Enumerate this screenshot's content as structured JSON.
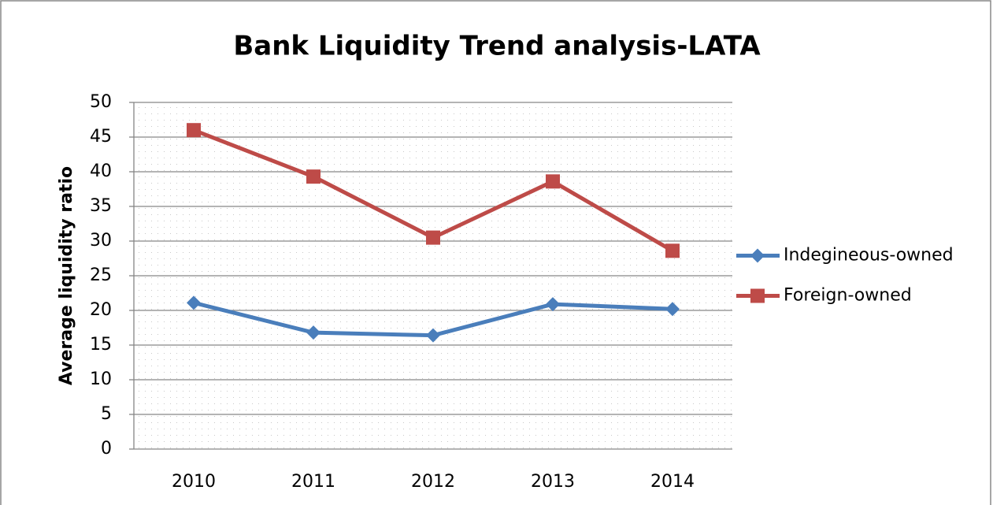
{
  "chart_data": {
    "type": "line",
    "title": "Bank Liquidity Trend analysis-LATA",
    "ylabel": "Average liquidity ratio",
    "categories": [
      "2010",
      "2011",
      "2012",
      "2013",
      "2014"
    ],
    "series": [
      {
        "name": "Indegineous-owned",
        "color": "#4a7ebb",
        "marker": "diamond",
        "values": [
          21.1,
          16.8,
          16.4,
          20.9,
          20.2
        ]
      },
      {
        "name": "Foreign-owned",
        "color": "#be4b48",
        "marker": "square",
        "values": [
          46.0,
          39.3,
          30.5,
          38.6,
          28.6
        ]
      }
    ],
    "ylim": [
      0,
      50
    ],
    "yticks": [
      0,
      5,
      10,
      15,
      20,
      25,
      30,
      35,
      40,
      45,
      50
    ],
    "grid": true,
    "legend": "right"
  }
}
